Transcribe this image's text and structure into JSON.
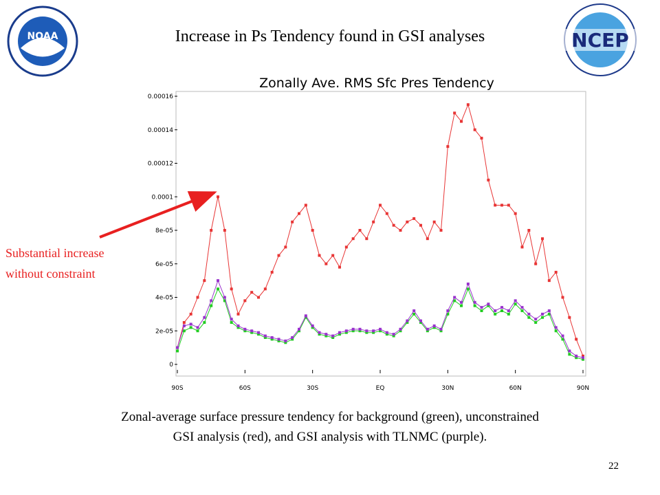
{
  "slide_title": "Increase in Ps Tendency found in GSI analyses",
  "logos": {
    "left": "NOAA",
    "right": "NCEP"
  },
  "annotation": [
    "Substantial increase",
    "without constraint"
  ],
  "caption": [
    "Zonal-average surface pressure tendency for background (green), unconstrained",
    "GSI analysis (red), and GSI analysis with TLNMC (purple)."
  ],
  "page_number": "22",
  "chart_data": {
    "type": "line",
    "title": "Zonally Ave. RMS Sfc Pres Tendency",
    "x": [
      -90,
      -87,
      -84,
      -81,
      -78,
      -75,
      -72,
      -69,
      -66,
      -63,
      -60,
      -57,
      -54,
      -51,
      -48,
      -45,
      -42,
      -39,
      -36,
      -33,
      -30,
      -27,
      -24,
      -21,
      -18,
      -15,
      -12,
      -9,
      -6,
      -3,
      0,
      3,
      6,
      9,
      12,
      15,
      18,
      21,
      24,
      27,
      30,
      33,
      36,
      39,
      42,
      45,
      48,
      51,
      54,
      57,
      60,
      63,
      66,
      69,
      72,
      75,
      78,
      81,
      84,
      87,
      90
    ],
    "xlim": [
      -90,
      90
    ],
    "xticks": [
      {
        "value": -90,
        "label": "90S"
      },
      {
        "value": -60,
        "label": "60S"
      },
      {
        "value": -30,
        "label": "30S"
      },
      {
        "value": 0,
        "label": "EQ"
      },
      {
        "value": 30,
        "label": "30N"
      },
      {
        "value": 60,
        "label": "60N"
      },
      {
        "value": 90,
        "label": "90N"
      }
    ],
    "ylim": [
      0,
      0.00016
    ],
    "yticks": [
      0,
      {
        "value": 2e-05,
        "label": "2e-05"
      },
      {
        "value": 4e-05,
        "label": "4e-05"
      },
      {
        "value": 6e-05,
        "label": "6e-05"
      },
      {
        "value": 8e-05,
        "label": "8e-05"
      },
      0.0001,
      0.00012,
      0.00014,
      0.00016
    ],
    "series": [
      {
        "color": "#e83535",
        "values": [
          1e-05,
          2.5e-05,
          3e-05,
          4e-05,
          5e-05,
          8e-05,
          0.0001,
          8e-05,
          4.5e-05,
          3e-05,
          3.8e-05,
          4.3e-05,
          4e-05,
          4.5e-05,
          5.5e-05,
          6.5e-05,
          7e-05,
          8.5e-05,
          9e-05,
          9.5e-05,
          8e-05,
          6.5e-05,
          6e-05,
          6.5e-05,
          5.8e-05,
          7e-05,
          7.5e-05,
          8e-05,
          7.5e-05,
          8.5e-05,
          9.5e-05,
          9e-05,
          8.3e-05,
          8e-05,
          8.5e-05,
          8.7e-05,
          8.3e-05,
          7.5e-05,
          8.5e-05,
          8e-05,
          0.00013,
          0.00015,
          0.000145,
          0.000155,
          0.00014,
          0.000135,
          0.00011,
          9.5e-05,
          9.5e-05,
          9.5e-05,
          9e-05,
          7e-05,
          8e-05,
          6e-05,
          7.5e-05,
          5e-05,
          5.5e-05,
          4e-05,
          2.8e-05,
          1.5e-05,
          5e-06
        ]
      },
      {
        "color": "#22cc22",
        "values": [
          8e-06,
          2e-05,
          2.2e-05,
          2e-05,
          2.5e-05,
          3.5e-05,
          4.5e-05,
          3.8e-05,
          2.5e-05,
          2.2e-05,
          2e-05,
          1.9e-05,
          1.8e-05,
          1.6e-05,
          1.5e-05,
          1.4e-05,
          1.3e-05,
          1.5e-05,
          2e-05,
          2.8e-05,
          2.2e-05,
          1.8e-05,
          1.7e-05,
          1.6e-05,
          1.8e-05,
          1.9e-05,
          2e-05,
          2e-05,
          1.9e-05,
          1.9e-05,
          2e-05,
          1.8e-05,
          1.7e-05,
          2e-05,
          2.5e-05,
          3e-05,
          2.5e-05,
          2e-05,
          2.2e-05,
          2e-05,
          3e-05,
          3.8e-05,
          3.5e-05,
          4.5e-05,
          3.5e-05,
          3.2e-05,
          3.5e-05,
          3e-05,
          3.2e-05,
          3e-05,
          3.6e-05,
          3.2e-05,
          2.8e-05,
          2.5e-05,
          2.8e-05,
          3e-05,
          2e-05,
          1.5e-05,
          6e-06,
          4e-06,
          3e-06
        ]
      },
      {
        "color": "#9933cc",
        "values": [
          1e-05,
          2.3e-05,
          2.4e-05,
          2.2e-05,
          2.8e-05,
          3.8e-05,
          5e-05,
          4e-05,
          2.7e-05,
          2.3e-05,
          2.1e-05,
          2e-05,
          1.9e-05,
          1.7e-05,
          1.6e-05,
          1.5e-05,
          1.4e-05,
          1.6e-05,
          2.1e-05,
          2.9e-05,
          2.3e-05,
          1.9e-05,
          1.8e-05,
          1.7e-05,
          1.9e-05,
          2e-05,
          2.1e-05,
          2.1e-05,
          2e-05,
          2e-05,
          2.1e-05,
          1.9e-05,
          1.8e-05,
          2.1e-05,
          2.6e-05,
          3.2e-05,
          2.6e-05,
          2.1e-05,
          2.3e-05,
          2.1e-05,
          3.2e-05,
          4e-05,
          3.7e-05,
          4.8e-05,
          3.7e-05,
          3.4e-05,
          3.6e-05,
          3.2e-05,
          3.4e-05,
          3.2e-05,
          3.8e-05,
          3.4e-05,
          3e-05,
          2.7e-05,
          3e-05,
          3.2e-05,
          2.2e-05,
          1.7e-05,
          8e-06,
          5e-06,
          4e-06
        ]
      }
    ]
  }
}
